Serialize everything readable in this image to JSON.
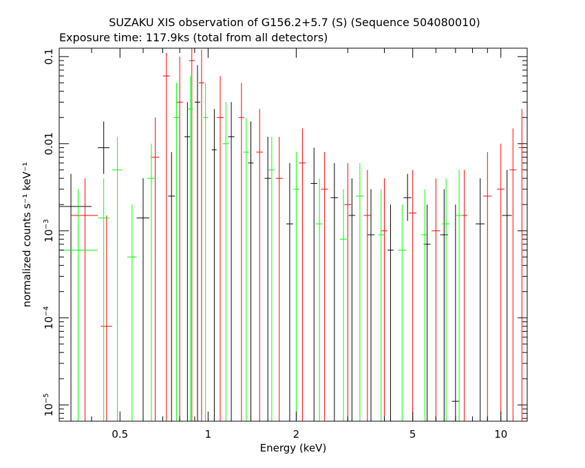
{
  "chart_data": {
    "type": "scatter",
    "title": "SUZAKU XIS observation of G156.2+5.7 (S) (Sequence 504080010)",
    "subtitle": "Exposure time: 117.9ks (total from all detectors)",
    "xlabel": "Energy (keV)",
    "ylabel": "normalized counts s⁻¹ keV⁻¹",
    "xscale": "log",
    "yscale": "log",
    "xlim": [
      0.31,
      12.3
    ],
    "ylim": [
      6.5e-06,
      0.125
    ],
    "grid": false,
    "x_ticks": [
      {
        "value": 0.5,
        "label": "0.5"
      },
      {
        "value": 1,
        "label": "1"
      },
      {
        "value": 2,
        "label": "2"
      },
      {
        "value": 5,
        "label": "5"
      },
      {
        "value": 10,
        "label": "10"
      }
    ],
    "y_ticks": [
      {
        "value": 0.1,
        "label": "0.1"
      },
      {
        "value": 0.01,
        "label": "0.01"
      },
      {
        "value": 0.001,
        "base": "10",
        "exp": "−3"
      },
      {
        "value": 0.0001,
        "base": "10",
        "exp": "−4"
      },
      {
        "value": 1e-05,
        "base": "10",
        "exp": "−5"
      }
    ],
    "series": [
      {
        "color": "#000000",
        "points": [
          {
            "x": 0.34,
            "xerr": [
              0.31,
              0.4
            ],
            "y": 0.0019,
            "yerr": [
              6.5e-06,
              0.0045
            ]
          },
          {
            "x": 0.44,
            "xerr": [
              0.42,
              0.46
            ],
            "y": 0.009,
            "yerr": [
              0.0045,
              0.018
            ]
          },
          {
            "x": 0.6,
            "xerr": [
              0.57,
              0.63
            ],
            "y": 0.0014,
            "yerr": [
              6.5e-06,
              0.004
            ]
          },
          {
            "x": 0.75,
            "xerr": [
              0.73,
              0.77
            ],
            "y": 0.0025,
            "yerr": [
              6.5e-06,
              0.008
            ]
          },
          {
            "x": 0.85,
            "xerr": [
              0.83,
              0.87
            ],
            "y": 0.012,
            "yerr": [
              6.5e-06,
              0.03
            ]
          },
          {
            "x": 0.92,
            "xerr": [
              0.9,
              0.94
            ],
            "y": 0.03,
            "yerr": [
              6.5e-06,
              0.08
            ]
          },
          {
            "x": 1.05,
            "xerr": [
              1.03,
              1.07
            ],
            "y": 0.0085,
            "yerr": [
              6.5e-06,
              0.025
            ]
          },
          {
            "x": 1.2,
            "xerr": [
              1.17,
              1.23
            ],
            "y": 0.012,
            "yerr": [
              6.5e-06,
              0.03
            ]
          },
          {
            "x": 1.4,
            "xerr": [
              1.37,
              1.43
            ],
            "y": 0.006,
            "yerr": [
              6.5e-06,
              0.018
            ]
          },
          {
            "x": 1.6,
            "xerr": [
              1.56,
              1.64
            ],
            "y": 0.004,
            "yerr": [
              6.5e-06,
              0.012
            ]
          },
          {
            "x": 1.9,
            "xerr": [
              1.85,
              1.95
            ],
            "y": 0.0012,
            "yerr": [
              6.5e-06,
              0.006
            ]
          },
          {
            "x": 2.3,
            "xerr": [
              2.24,
              2.36
            ],
            "y": 0.0035,
            "yerr": [
              6.5e-06,
              0.009
            ]
          },
          {
            "x": 2.7,
            "xerr": [
              2.62,
              2.78
            ],
            "y": 0.0024,
            "yerr": [
              6.5e-06,
              0.006
            ]
          },
          {
            "x": 3.1,
            "xerr": [
              3.02,
              3.18
            ],
            "y": 0.0015,
            "yerr": [
              6.5e-06,
              0.004
            ]
          },
          {
            "x": 3.6,
            "xerr": [
              3.5,
              3.7
            ],
            "y": 0.0009,
            "yerr": [
              6.5e-06,
              0.003
            ]
          },
          {
            "x": 4.2,
            "xerr": [
              4.1,
              4.3
            ],
            "y": 0.0006,
            "yerr": [
              6.5e-06,
              0.002
            ]
          },
          {
            "x": 4.8,
            "xerr": [
              4.65,
              4.95
            ],
            "y": 0.0024,
            "yerr": [
              0.0013,
              0.0045
            ]
          },
          {
            "x": 5.6,
            "xerr": [
              5.45,
              5.75
            ],
            "y": 0.0007,
            "yerr": [
              6.5e-06,
              0.002
            ]
          },
          {
            "x": 6.4,
            "xerr": [
              6.2,
              6.6
            ],
            "y": 0.0009,
            "yerr": [
              6.5e-06,
              0.003
            ]
          },
          {
            "x": 7.0,
            "xerr": [
              6.8,
              7.2
            ],
            "y": 1.1e-05,
            "yerr": [
              6.5e-06,
              0.002
            ]
          },
          {
            "x": 8.5,
            "xerr": [
              8.2,
              8.8
            ],
            "y": 0.0012,
            "yerr": [
              6.5e-06,
              0.004
            ]
          },
          {
            "x": 10.5,
            "xerr": [
              10.1,
              10.9
            ],
            "y": 0.0015,
            "yerr": [
              6.5e-06,
              0.005
            ]
          }
        ]
      },
      {
        "color": "#ff0000",
        "points": [
          {
            "x": 0.38,
            "xerr": [
              0.34,
              0.42
            ],
            "y": 0.0015,
            "yerr": [
              6.5e-06,
              0.004
            ]
          },
          {
            "x": 0.45,
            "xerr": [
              0.43,
              0.47
            ],
            "y": 8e-05,
            "yerr": [
              6.5e-06,
              0.0015
            ]
          },
          {
            "x": 0.66,
            "xerr": [
              0.64,
              0.68
            ],
            "y": 0.007,
            "yerr": [
              6.5e-06,
              0.02
            ]
          },
          {
            "x": 0.72,
            "xerr": [
              0.7,
              0.74
            ],
            "y": 0.06,
            "yerr": [
              6.5e-06,
              0.11
            ]
          },
          {
            "x": 0.8,
            "xerr": [
              0.78,
              0.82
            ],
            "y": 0.03,
            "yerr": [
              6.5e-06,
              0.1
            ]
          },
          {
            "x": 0.88,
            "xerr": [
              0.86,
              0.9
            ],
            "y": 0.09,
            "yerr": [
              6.5e-06,
              0.125
            ]
          },
          {
            "x": 0.95,
            "xerr": [
              0.93,
              0.97
            ],
            "y": 0.05,
            "yerr": [
              6.5e-06,
              0.12
            ]
          },
          {
            "x": 1.1,
            "xerr": [
              1.07,
              1.13
            ],
            "y": 0.02,
            "yerr": [
              6.5e-06,
              0.06
            ]
          },
          {
            "x": 1.3,
            "xerr": [
              1.27,
              1.33
            ],
            "y": 0.02,
            "yerr": [
              6.5e-06,
              0.05
            ]
          },
          {
            "x": 1.5,
            "xerr": [
              1.46,
              1.54
            ],
            "y": 0.008,
            "yerr": [
              6.5e-06,
              0.025
            ]
          },
          {
            "x": 1.75,
            "xerr": [
              1.7,
              1.8
            ],
            "y": 0.004,
            "yerr": [
              6.5e-06,
              0.012
            ]
          },
          {
            "x": 2.1,
            "xerr": [
              2.04,
              2.16
            ],
            "y": 0.006,
            "yerr": [
              6.5e-06,
              0.015
            ]
          },
          {
            "x": 2.5,
            "xerr": [
              2.43,
              2.57
            ],
            "y": 0.003,
            "yerr": [
              6.5e-06,
              0.008
            ]
          },
          {
            "x": 3.0,
            "xerr": [
              2.92,
              3.08
            ],
            "y": 0.002,
            "yerr": [
              6.5e-06,
              0.006
            ]
          },
          {
            "x": 3.5,
            "xerr": [
              3.4,
              3.6
            ],
            "y": 0.0015,
            "yerr": [
              6.5e-06,
              0.005
            ]
          },
          {
            "x": 4.0,
            "xerr": [
              3.9,
              4.1
            ],
            "y": 0.001,
            "yerr": [
              6.5e-06,
              0.004
            ]
          },
          {
            "x": 5.0,
            "xerr": [
              4.85,
              5.15
            ],
            "y": 0.0016,
            "yerr": [
              6.5e-06,
              0.005
            ]
          },
          {
            "x": 6.0,
            "xerr": [
              5.8,
              6.2
            ],
            "y": 0.001,
            "yerr": [
              6.5e-06,
              0.004
            ]
          },
          {
            "x": 7.5,
            "xerr": [
              7.3,
              7.7
            ],
            "y": 0.0015,
            "yerr": [
              6.5e-06,
              0.005
            ]
          },
          {
            "x": 9.0,
            "xerr": [
              8.7,
              9.3
            ],
            "y": 0.0025,
            "yerr": [
              6.5e-06,
              0.008
            ]
          },
          {
            "x": 10.0,
            "xerr": [
              9.7,
              10.3
            ],
            "y": 0.003,
            "yerr": [
              6.5e-06,
              0.01
            ]
          },
          {
            "x": 11.0,
            "xerr": [
              10.7,
              11.3
            ],
            "y": 0.005,
            "yerr": [
              6.5e-06,
              0.015
            ]
          },
          {
            "x": 11.8,
            "xerr": [
              11.5,
              12.1
            ],
            "y": 0.009,
            "yerr": [
              6.5e-06,
              0.025
            ]
          }
        ]
      },
      {
        "color": "#00ff00",
        "points": [
          {
            "x": 0.36,
            "xerr": [
              0.31,
              0.42
            ],
            "y": 0.0006,
            "yerr": [
              6.5e-06,
              0.003
            ]
          },
          {
            "x": 0.44,
            "xerr": [
              0.42,
              0.46
            ],
            "y": 0.0014,
            "yerr": [
              6.5e-06,
              0.004
            ]
          },
          {
            "x": 0.49,
            "xerr": [
              0.47,
              0.51
            ],
            "y": 0.005,
            "yerr": [
              6.5e-06,
              0.012
            ]
          },
          {
            "x": 0.55,
            "xerr": [
              0.53,
              0.57
            ],
            "y": 0.0005,
            "yerr": [
              6.5e-06,
              0.002
            ]
          },
          {
            "x": 0.64,
            "xerr": [
              0.62,
              0.66
            ],
            "y": 0.004,
            "yerr": [
              6.5e-06,
              0.01
            ]
          },
          {
            "x": 0.78,
            "xerr": [
              0.76,
              0.8
            ],
            "y": 0.02,
            "yerr": [
              6.5e-06,
              0.05
            ]
          },
          {
            "x": 0.87,
            "xerr": [
              0.85,
              0.89
            ],
            "y": 0.025,
            "yerr": [
              6.5e-06,
              0.06
            ]
          },
          {
            "x": 0.98,
            "xerr": [
              0.96,
              1.0
            ],
            "y": 0.02,
            "yerr": [
              6.5e-06,
              0.05
            ]
          },
          {
            "x": 1.15,
            "xerr": [
              1.12,
              1.18
            ],
            "y": 0.01,
            "yerr": [
              6.5e-06,
              0.03
            ]
          },
          {
            "x": 1.35,
            "xerr": [
              1.32,
              1.38
            ],
            "y": 0.008,
            "yerr": [
              6.5e-06,
              0.02
            ]
          },
          {
            "x": 1.65,
            "xerr": [
              1.61,
              1.69
            ],
            "y": 0.005,
            "yerr": [
              6.5e-06,
              0.012
            ]
          },
          {
            "x": 2.0,
            "xerr": [
              1.95,
              2.05
            ],
            "y": 0.003,
            "yerr": [
              6.5e-06,
              0.008
            ]
          },
          {
            "x": 2.4,
            "xerr": [
              2.33,
              2.47
            ],
            "y": 0.0012,
            "yerr": [
              6.5e-06,
              0.004
            ]
          },
          {
            "x": 2.9,
            "xerr": [
              2.82,
              2.98
            ],
            "y": 0.0008,
            "yerr": [
              6.5e-06,
              0.003
            ]
          },
          {
            "x": 3.3,
            "xerr": [
              3.2,
              3.4
            ],
            "y": 0.0025,
            "yerr": [
              6.5e-06,
              0.006
            ]
          },
          {
            "x": 3.9,
            "xerr": [
              3.8,
              4.0
            ],
            "y": 0.0009,
            "yerr": [
              6.5e-06,
              0.003
            ]
          },
          {
            "x": 4.6,
            "xerr": [
              4.45,
              4.75
            ],
            "y": 0.0006,
            "yerr": [
              6.5e-06,
              0.002
            ]
          },
          {
            "x": 5.5,
            "xerr": [
              5.35,
              5.65
            ],
            "y": 0.0009,
            "yerr": [
              6.5e-06,
              0.003
            ]
          },
          {
            "x": 6.5,
            "xerr": [
              6.3,
              6.7
            ],
            "y": 0.0012,
            "yerr": [
              6.5e-06,
              0.004
            ]
          },
          {
            "x": 7.2,
            "xerr": [
              7.0,
              7.4
            ],
            "y": 0.0015,
            "yerr": [
              6.5e-06,
              0.005
            ]
          }
        ]
      }
    ]
  }
}
